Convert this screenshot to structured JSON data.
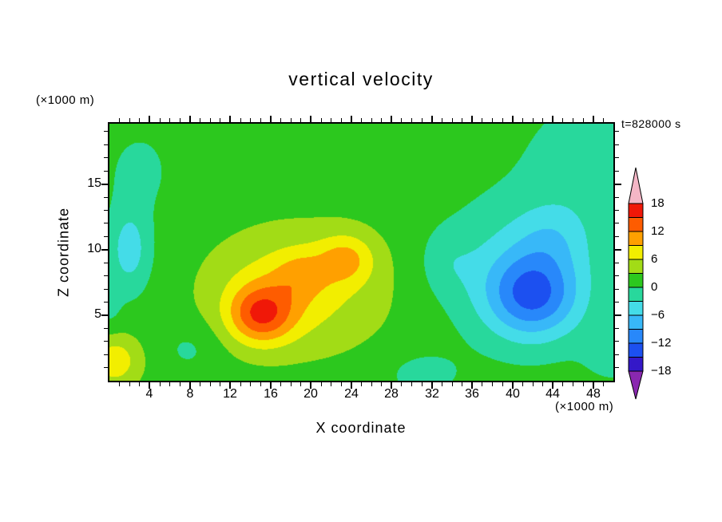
{
  "chart_data": {
    "type": "contour",
    "title": "vertical velocity",
    "annotation": "t=828000 s",
    "xlabel": "X coordinate",
    "xunit": "(×1000 m)",
    "ylabel": "Z coordinate",
    "yunit": "(×1000 m)",
    "xlim": [
      0,
      50
    ],
    "ylim": [
      0,
      19.6
    ],
    "xticks_major": [
      4,
      8,
      12,
      16,
      20,
      24,
      28,
      32,
      36,
      40,
      44,
      48
    ],
    "yticks_major": [
      5,
      10,
      15
    ],
    "minor_tick_step": 1,
    "levels": [
      -18,
      -15,
      -12,
      -9,
      -6,
      -3,
      0,
      3,
      6,
      9,
      12,
      15,
      18
    ],
    "colorbar": {
      "tick_values": [
        18,
        12,
        6,
        0,
        -6,
        -12,
        -18
      ],
      "tick_labels": [
        "18",
        "12",
        "6",
        "0",
        "−6",
        "−12",
        "−18"
      ],
      "under_color": "#8a28b0",
      "over_color": "#f4b6c6",
      "colors": [
        "#3418c8",
        "#1c50f0",
        "#2888fa",
        "#38b8f8",
        "#44dce8",
        "#28d89c",
        "#2cc81e",
        "#a2dc16",
        "#f2ee00",
        "#ffa000",
        "#fe5c00",
        "#f01808"
      ]
    },
    "field": {
      "base": 1.5,
      "gaussians": [
        {
          "x": 15,
          "z": 5,
          "sx": 3.2,
          "sz": 2.2,
          "a": 10
        },
        {
          "x": 16.5,
          "z": 6.5,
          "sx": 5.5,
          "sz": 3.2,
          "a": 2
        },
        {
          "x": 19,
          "z": 8.2,
          "sx": 2.6,
          "sz": 1.8,
          "a": 3.5
        },
        {
          "x": 23.5,
          "z": 9.3,
          "sx": 2.8,
          "sz": 1.9,
          "a": 6
        },
        {
          "x": 19,
          "z": 7,
          "sx": 9,
          "sz": 4.8,
          "a": 5
        },
        {
          "x": 42,
          "z": 6.5,
          "sx": 4.5,
          "sz": 3.2,
          "a": -11
        },
        {
          "x": 41,
          "z": 8.5,
          "sx": 8,
          "sz": 5.5,
          "a": -5
        },
        {
          "x": 44,
          "z": 11,
          "sx": 3.5,
          "sz": 2.5,
          "a": -3
        },
        {
          "x": 2,
          "z": 10,
          "sx": 2.2,
          "sz": 3.4,
          "a": -6
        },
        {
          "x": 0.5,
          "z": 1.5,
          "sx": 2.6,
          "sz": 2,
          "a": 6.5
        },
        {
          "x": 48,
          "z": 17,
          "sx": 7,
          "sz": 5,
          "a": -3
        },
        {
          "x": 3,
          "z": 16,
          "sx": 3,
          "sz": 3,
          "a": -2.5
        },
        {
          "x": 0,
          "z": 5.5,
          "sx": 1.2,
          "sz": 2,
          "a": -2
        },
        {
          "x": 33.5,
          "z": 9,
          "sx": 2.6,
          "sz": 2.4,
          "a": -2.2
        },
        {
          "x": 31,
          "z": 0.5,
          "sx": 4,
          "sz": 1.8,
          "a": -2.5
        },
        {
          "x": 50,
          "z": 2,
          "sx": 3,
          "sz": 2.2,
          "a": -2.5
        },
        {
          "x": 8,
          "z": 2.5,
          "sx": 3,
          "sz": 2,
          "a": -2.2
        }
      ]
    }
  }
}
